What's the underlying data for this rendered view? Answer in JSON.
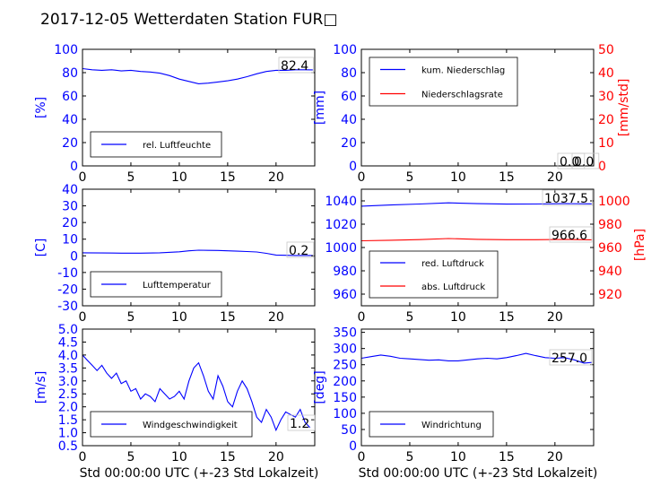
{
  "title": "2017-12-05 Wetterdaten Station FUR□",
  "xlabel": "Std 00:00:00 UTC (+-23 Std Lokalzeit)",
  "colors": {
    "left_axis": "#0000ff",
    "right_axis": "#ff0000",
    "frame": "#000000"
  },
  "chart_data": [
    {
      "type": "line",
      "panel": "humidity",
      "ylabel": "[%]",
      "xlim": [
        0,
        24
      ],
      "xticks": [
        0,
        5,
        10,
        15,
        20
      ],
      "ylim": [
        0,
        100
      ],
      "yticks": [
        0,
        20,
        40,
        60,
        80,
        100
      ],
      "legend_position": "lower-left",
      "value_label": "82.4",
      "series": [
        {
          "name": "rel. Luftfeuchte",
          "color": "#0000ff",
          "axis": "left",
          "x": [
            0,
            1,
            2,
            3,
            4,
            5,
            6,
            7,
            8,
            9,
            10,
            11,
            12,
            13,
            14,
            15,
            16,
            17,
            18,
            19,
            20,
            21,
            22,
            23,
            23.8
          ],
          "y": [
            83.5,
            82.5,
            82,
            82.5,
            81.5,
            82,
            81,
            80.5,
            79.5,
            77.5,
            74.5,
            72.5,
            70.5,
            71,
            72,
            73,
            74.5,
            76.5,
            79,
            81,
            82,
            82,
            82.5,
            82.5,
            82.4
          ]
        }
      ]
    },
    {
      "type": "line",
      "panel": "precipitation",
      "ylabel": "[mm]",
      "ylabel_right": "[mm/std]",
      "xlim": [
        0,
        24
      ],
      "xticks": [
        0,
        5,
        10,
        15,
        20
      ],
      "ylim": [
        0,
        100
      ],
      "yticks": [
        0,
        20,
        40,
        60,
        80,
        100
      ],
      "ylim_right": [
        0,
        50
      ],
      "yticks_right": [
        0,
        10,
        20,
        30,
        40,
        50
      ],
      "legend_position": "top-left",
      "value_labels": [
        "0.0",
        "0.0"
      ],
      "series": [
        {
          "name": "kum. Niederschlag",
          "color": "#0000ff",
          "axis": "left",
          "x": [
            0,
            24
          ],
          "y": [
            0,
            0
          ]
        },
        {
          "name": "Niederschlagsrate",
          "color": "#ff0000",
          "axis": "right",
          "x": [
            0,
            24
          ],
          "y": [
            0,
            0
          ]
        }
      ]
    },
    {
      "type": "line",
      "panel": "temperature",
      "ylabel": "[C]",
      "xlim": [
        0,
        24
      ],
      "xticks": [
        0,
        5,
        10,
        15,
        20
      ],
      "ylim": [
        -30,
        40
      ],
      "yticks": [
        -30,
        -20,
        -10,
        0,
        10,
        20,
        30,
        40
      ],
      "legend_position": "lower-left",
      "value_label": "0.2",
      "series": [
        {
          "name": "Lufttemperatur",
          "color": "#0000ff",
          "axis": "left",
          "x": [
            0,
            2,
            4,
            6,
            8,
            10,
            11,
            12,
            13,
            14,
            15,
            16,
            17,
            18,
            19,
            20,
            21,
            22,
            23,
            23.8
          ],
          "y": [
            1.8,
            1.7,
            1.6,
            1.6,
            1.8,
            2.4,
            3.0,
            3.4,
            3.3,
            3.2,
            3.0,
            2.8,
            2.6,
            2.3,
            1.5,
            0.5,
            0.3,
            0.2,
            0.2,
            0.2
          ]
        }
      ]
    },
    {
      "type": "line",
      "panel": "pressure",
      "ylabel_right": "[hPa]",
      "xlim": [
        0,
        24
      ],
      "xticks": [
        0,
        5,
        10,
        15,
        20
      ],
      "ylim": [
        950,
        1050
      ],
      "yticks": [
        960,
        980,
        1000,
        1020,
        1040
      ],
      "ylim_right": [
        910,
        1010
      ],
      "yticks_right": [
        920,
        940,
        960,
        980,
        1000
      ],
      "legend_position": "lower-left",
      "value_labels": [
        "1037.5",
        "966.6"
      ],
      "series": [
        {
          "name": "red. Luftdruck",
          "color": "#0000ff",
          "axis": "left",
          "x": [
            0,
            3,
            6,
            9,
            12,
            15,
            18,
            21,
            23.8
          ],
          "y": [
            1035.5,
            1036.5,
            1037.3,
            1038.3,
            1037.6,
            1037.2,
            1037.3,
            1037.6,
            1037.5
          ]
        },
        {
          "name": "abs. Luftdruck",
          "color": "#ff0000",
          "axis": "right",
          "x": [
            0,
            3,
            6,
            9,
            12,
            15,
            18,
            21,
            23.8
          ],
          "y": [
            965.8,
            966.2,
            966.8,
            967.7,
            967.0,
            966.7,
            966.7,
            966.9,
            966.6
          ]
        }
      ]
    },
    {
      "type": "line",
      "panel": "wind-speed",
      "ylabel": "[m/s]",
      "xlim": [
        0,
        24
      ],
      "xticks": [
        0,
        5,
        10,
        15,
        20
      ],
      "ylim": [
        0.5,
        5.0
      ],
      "yticks": [
        0.5,
        1.0,
        1.5,
        2.0,
        2.5,
        3.0,
        3.5,
        4.0,
        4.5,
        5.0
      ],
      "legend_position": "lower-left",
      "value_label": "1.2",
      "series": [
        {
          "name": "Windgeschwindigkeit",
          "color": "#0000ff",
          "axis": "left",
          "x": [
            0,
            0.5,
            1,
            1.5,
            2,
            2.5,
            3,
            3.5,
            4,
            4.5,
            5,
            5.5,
            6,
            6.5,
            7,
            7.5,
            8,
            8.5,
            9,
            9.5,
            10,
            10.5,
            11,
            11.5,
            12,
            12.5,
            13,
            13.5,
            14,
            14.5,
            15,
            15.5,
            16,
            16.5,
            17,
            17.5,
            18,
            18.5,
            19,
            19.5,
            20,
            20.5,
            21,
            21.5,
            22,
            22.5,
            23,
            23.5
          ],
          "y": [
            4.0,
            3.8,
            3.6,
            3.4,
            3.6,
            3.3,
            3.1,
            3.3,
            2.9,
            3.0,
            2.6,
            2.7,
            2.3,
            2.5,
            2.4,
            2.2,
            2.7,
            2.5,
            2.3,
            2.4,
            2.6,
            2.3,
            3.0,
            3.5,
            3.7,
            3.2,
            2.6,
            2.3,
            3.2,
            2.8,
            2.2,
            2.0,
            2.6,
            3.0,
            2.7,
            2.2,
            1.6,
            1.4,
            1.9,
            1.6,
            1.1,
            1.5,
            1.8,
            1.7,
            1.6,
            1.9,
            1.4,
            1.2
          ]
        }
      ]
    },
    {
      "type": "line",
      "panel": "wind-direction",
      "ylabel": "[deg]",
      "xlim": [
        0,
        24
      ],
      "xticks": [
        0,
        5,
        10,
        15,
        20
      ],
      "ylim": [
        0,
        360
      ],
      "yticks": [
        0,
        50,
        100,
        150,
        200,
        250,
        300,
        350
      ],
      "legend_position": "lower-left",
      "value_label": "257.0",
      "series": [
        {
          "name": "Windrichtung",
          "color": "#0000ff",
          "axis": "left",
          "x": [
            0,
            1,
            2,
            3,
            4,
            5,
            6,
            7,
            8,
            9,
            10,
            11,
            12,
            13,
            14,
            15,
            16,
            17,
            18,
            19,
            20,
            21,
            22,
            23,
            23.8
          ],
          "y": [
            270,
            275,
            280,
            276,
            270,
            268,
            266,
            264,
            265,
            262,
            262,
            265,
            268,
            270,
            268,
            272,
            278,
            285,
            278,
            272,
            270,
            272,
            265,
            255,
            257
          ]
        }
      ]
    }
  ]
}
